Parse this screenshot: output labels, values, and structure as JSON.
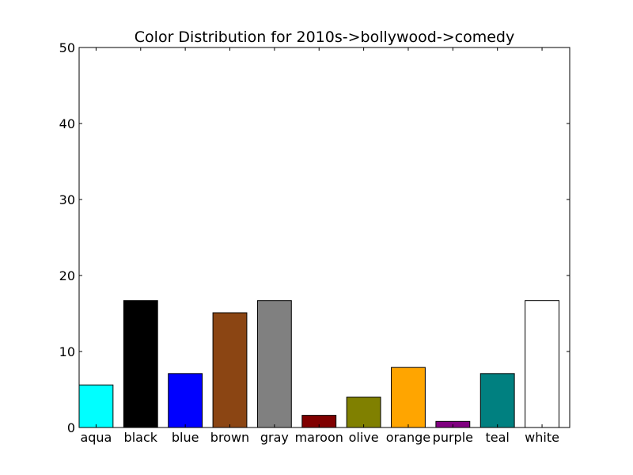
{
  "chart_data": {
    "type": "bar",
    "title": "Color Distribution for 2010s->bollywood->comedy",
    "xlabel": "",
    "ylabel": "",
    "ylim": [
      0,
      50
    ],
    "yticks": [
      0,
      10,
      20,
      30,
      40,
      50
    ],
    "grid": false,
    "categories": [
      "aqua",
      "black",
      "blue",
      "brown",
      "gray",
      "maroon",
      "olive",
      "orange",
      "purple",
      "teal",
      "white"
    ],
    "values": [
      5.6,
      16.7,
      7.1,
      15.1,
      16.7,
      1.6,
      4.0,
      7.9,
      0.8,
      7.1,
      16.7
    ],
    "colors": [
      "#00ffff",
      "#000000",
      "#0000ff",
      "#8b4513",
      "#808080",
      "#800000",
      "#808000",
      "#ffa500",
      "#800080",
      "#008080",
      "#ffffff"
    ]
  }
}
